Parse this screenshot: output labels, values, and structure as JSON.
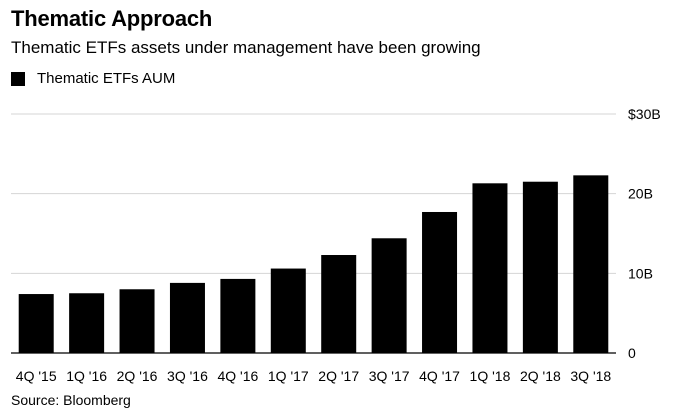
{
  "chart_data": {
    "type": "bar",
    "title": "Thematic Approach",
    "subtitle": "Thematic ETFs assets under management have been growing",
    "legend": [
      {
        "label": "Thematic ETFs AUM",
        "color": "#000000"
      }
    ],
    "categories": [
      "4Q '15",
      "1Q '16",
      "2Q '16",
      "3Q '16",
      "4Q '16",
      "1Q '17",
      "2Q '17",
      "3Q '17",
      "4Q '17",
      "1Q '18",
      "2Q '18",
      "3Q '18"
    ],
    "series": [
      {
        "name": "Thematic ETFs AUM",
        "unit": "billion USD",
        "values": [
          7.4,
          7.5,
          8.0,
          8.8,
          9.3,
          10.6,
          12.3,
          14.4,
          17.7,
          21.3,
          21.5,
          22.3
        ]
      }
    ],
    "ylim": [
      0,
      30
    ],
    "yticks": [
      {
        "value": 0,
        "label": "0"
      },
      {
        "value": 10,
        "label": "10B"
      },
      {
        "value": 20,
        "label": "20B"
      },
      {
        "value": 30,
        "label": "$30B"
      }
    ],
    "grid": true,
    "xlabel": "",
    "ylabel": "",
    "source": "Source: Bloomberg"
  }
}
